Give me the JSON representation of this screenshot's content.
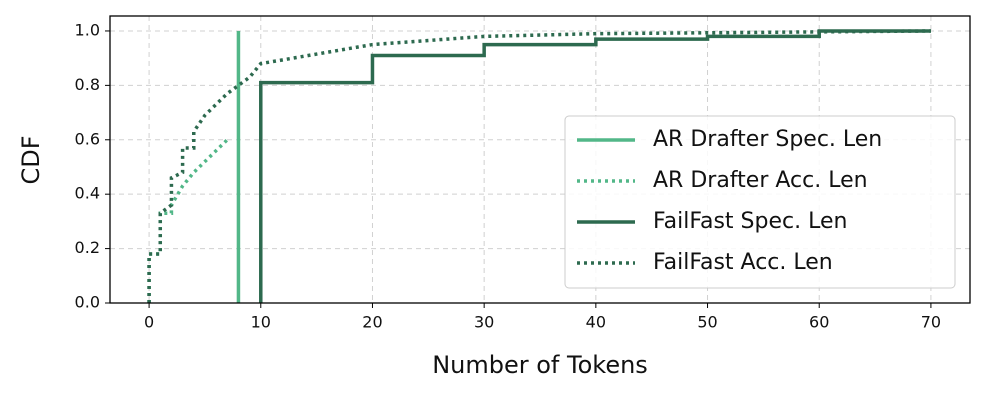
{
  "chart_data": {
    "type": "line",
    "step": true,
    "x_label": "Number of Tokens",
    "y_label": "CDF",
    "xlim": [
      -3.5,
      73.5
    ],
    "ylim": [
      0,
      1.055
    ],
    "xticks": [
      0,
      10,
      20,
      30,
      40,
      50,
      60,
      70
    ],
    "yticks": [
      {
        "value": 0,
        "label": "0.0"
      },
      0.2,
      0.4,
      0.6,
      0.8,
      {
        "value": 1,
        "label": "1.0"
      }
    ],
    "grid": true,
    "legend": "lower right",
    "series": [
      {
        "name": "AR Drafter Spec. Len",
        "color": "#52b788",
        "dashed": false,
        "x": [
          8,
          8
        ],
        "values": [
          0,
          1.0
        ]
      },
      {
        "name": "AR Drafter Acc. Len",
        "color": "#52b788",
        "dashed": true,
        "x": [
          0,
          0,
          1,
          1,
          2,
          2,
          3,
          4,
          5,
          6,
          7
        ],
        "values": [
          0,
          0.18,
          0.18,
          0.33,
          0.33,
          0.36,
          0.43,
          0.48,
          0.52,
          0.56,
          0.6
        ]
      },
      {
        "name": "FailFast Spec. Len",
        "color": "#2d6a4f",
        "dashed": false,
        "x": [
          10,
          10,
          20,
          20,
          30,
          30,
          40,
          40,
          50,
          50,
          60,
          60,
          70
        ],
        "values": [
          0,
          0.81,
          0.81,
          0.91,
          0.91,
          0.95,
          0.95,
          0.97,
          0.97,
          0.98,
          0.98,
          1.0,
          1.0
        ]
      },
      {
        "name": "FailFast Acc. Len",
        "color": "#2d6a4f",
        "dashed": true,
        "x": [
          0,
          0,
          1,
          1,
          2,
          2,
          3,
          3,
          4,
          4,
          5,
          6,
          7,
          8,
          9,
          10,
          20,
          30,
          40,
          70
        ],
        "values": [
          0,
          0.18,
          0.18,
          0.33,
          0.36,
          0.46,
          0.48,
          0.57,
          0.57,
          0.63,
          0.69,
          0.73,
          0.77,
          0.8,
          0.83,
          0.88,
          0.95,
          0.98,
          0.99,
          1.0
        ]
      }
    ]
  }
}
